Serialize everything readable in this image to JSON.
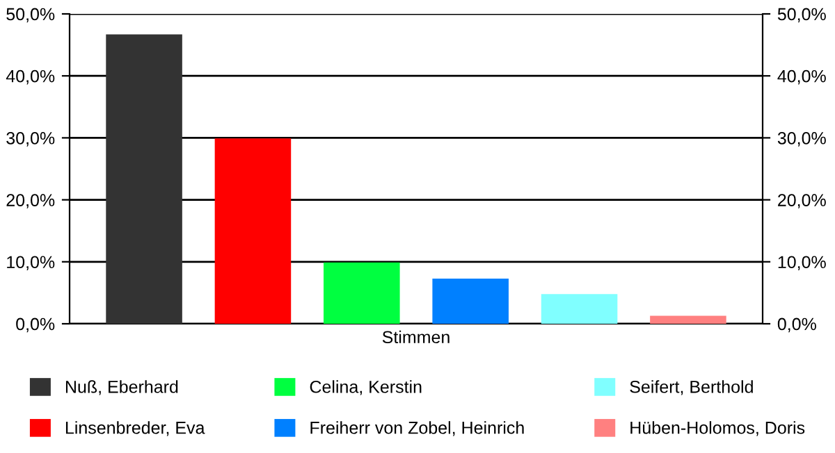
{
  "chart_data": {
    "type": "bar",
    "categories": [
      "Stimmen"
    ],
    "series": [
      {
        "name": "Nuß, Eberhard",
        "color": "#333333",
        "values": [
          46.7
        ]
      },
      {
        "name": "Linsenbreder, Eva",
        "color": "#ff0000",
        "values": [
          29.9
        ]
      },
      {
        "name": "Celina, Kerstin",
        "color": "#00ff40",
        "values": [
          9.9
        ]
      },
      {
        "name": "Freiherr von Zobel, Heinrich",
        "color": "#0080ff",
        "values": [
          7.3
        ]
      },
      {
        "name": "Seifert, Berthold",
        "color": "#80ffff",
        "values": [
          4.8
        ]
      },
      {
        "name": "Hüben-Holomos, Doris",
        "color": "#ff8080",
        "values": [
          1.3
        ]
      }
    ],
    "ylim": [
      0,
      50
    ],
    "yticks": [
      {
        "value": 0,
        "label": "0,0%"
      },
      {
        "value": 10,
        "label": "10,0%"
      },
      {
        "value": 20,
        "label": "20,0%"
      },
      {
        "value": 30,
        "label": "30,0%"
      },
      {
        "value": 40,
        "label": "40,0%"
      },
      {
        "value": 50,
        "label": "50,0%"
      }
    ],
    "grid": "y",
    "legend": "bottom"
  }
}
